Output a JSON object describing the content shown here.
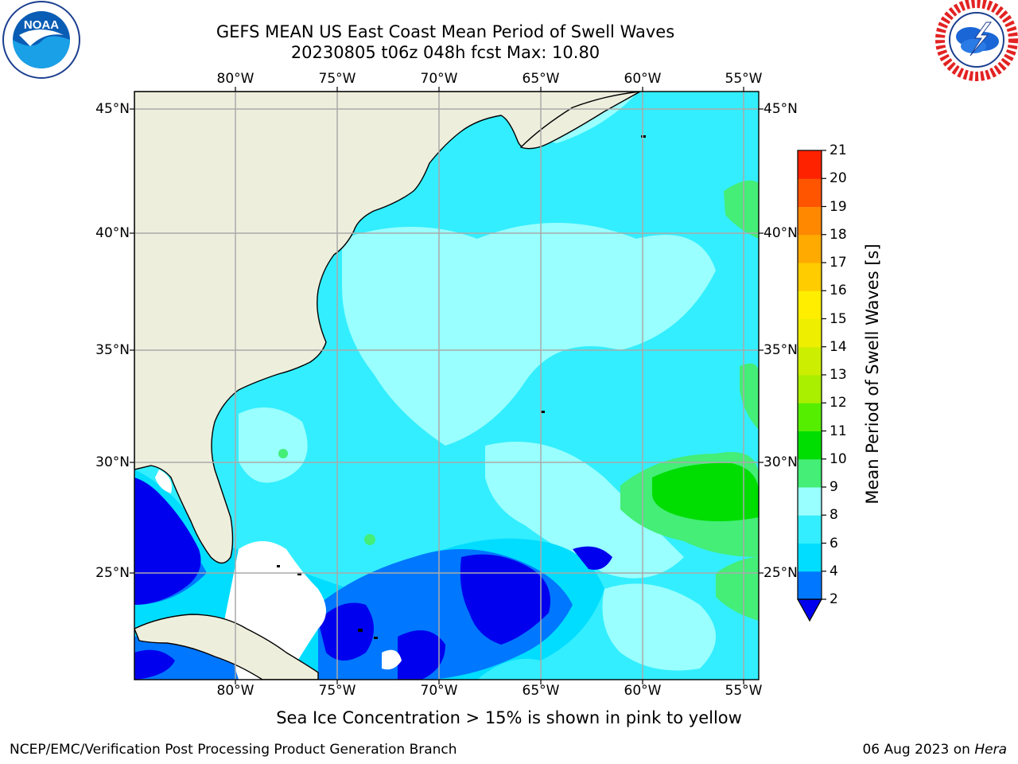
{
  "title_line1": "GEFS MEAN US East Coast Mean Period of Swell Waves",
  "title_line2": "20230805 t06z 048h fcst   Max: 10.80",
  "logos": {
    "left": "noaa-logo",
    "right": "national-weather-service-logo"
  },
  "map": {
    "lon_ticks": [
      "80°W",
      "75°W",
      "70°W",
      "65°W",
      "60°W",
      "55°W"
    ],
    "lat_ticks": [
      "45°N",
      "40°N",
      "35°N",
      "30°N",
      "25°N"
    ],
    "lon_range": [
      -85,
      -54.3
    ],
    "lat_range": [
      20.3,
      45.8
    ],
    "land_color": "#eeeedd",
    "gridlines": true
  },
  "colorbar": {
    "title": "Mean Period of Swell Waves [s]",
    "levels": [
      "2",
      "4",
      "6",
      "8",
      "9",
      "10",
      "11",
      "12",
      "13",
      "14",
      "15",
      "16",
      "17",
      "18",
      "19",
      "20",
      "21"
    ],
    "colors": [
      "#0077ff",
      "#00ddff",
      "#33eeff",
      "#99ffff",
      "#44ee77",
      "#00dd00",
      "#55ee00",
      "#aaee00",
      "#ccee00",
      "#eeee00",
      "#ffee00",
      "#ffcc00",
      "#ffaa00",
      "#ff8800",
      "#ff5500",
      "#ff2200"
    ],
    "under_color": "#0000ee"
  },
  "note": "Sea Ice Concentration > 15% is shown in pink to yellow",
  "footer": {
    "left": "NCEP/EMC/Verification Post Processing Product Generation Branch",
    "date": "06 Aug 2023 on ",
    "host": "Hera"
  }
}
